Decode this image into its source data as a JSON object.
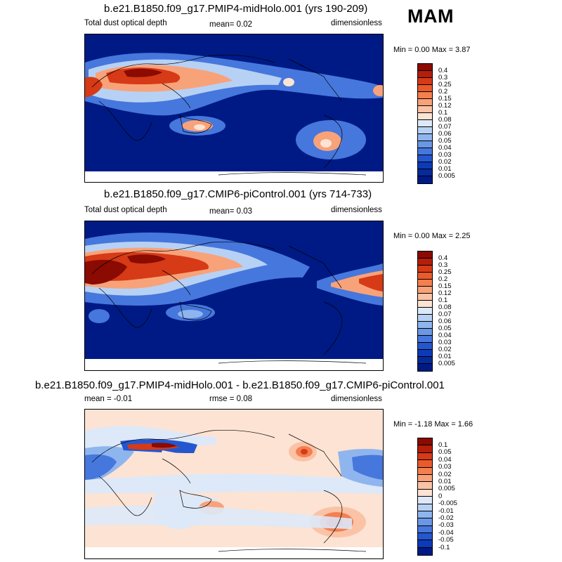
{
  "season": "MAM",
  "panels": [
    {
      "title": "b.e21.B1850.f09_g17.PMIP4-midHolo.001 (yrs 190-209)",
      "left_label": "Total dust optical depth",
      "stat": "mean=   0.02",
      "units": "dimensionless",
      "minmax": "Min =   0.00 Max =   3.87",
      "colorbar": {
        "labels": [
          "0.4",
          "0.3",
          "0.25",
          "0.2",
          "0.15",
          "0.12",
          "0.1",
          "0.08",
          "0.07",
          "0.06",
          "0.05",
          "0.04",
          "0.03",
          "0.02",
          "0.01",
          "0.005"
        ],
        "colors": [
          "#8b0a02",
          "#b51e0a",
          "#d63a16",
          "#ea5a2a",
          "#f47f4f",
          "#f8a27a",
          "#fbc3a6",
          "#fde3d3",
          "#dde9f8",
          "#b7d1f4",
          "#8fb5ee",
          "#6a97e6",
          "#4677dc",
          "#2457cf",
          "#0c3ab8",
          "#052a9a",
          "#001a85"
        ]
      }
    },
    {
      "title": "b.e21.B1850.f09_g17.CMIP6-piControl.001 (yrs 714-733)",
      "left_label": "Total dust optical depth",
      "stat": "mean=   0.03",
      "units": "dimensionless",
      "minmax": "Min =   0.00 Max =   2.25",
      "colorbar": {
        "labels": [
          "0.4",
          "0.3",
          "0.25",
          "0.2",
          "0.15",
          "0.12",
          "0.1",
          "0.08",
          "0.07",
          "0.06",
          "0.05",
          "0.04",
          "0.03",
          "0.02",
          "0.01",
          "0.005"
        ],
        "colors": [
          "#8b0a02",
          "#b51e0a",
          "#d63a16",
          "#ea5a2a",
          "#f47f4f",
          "#f8a27a",
          "#fbc3a6",
          "#fde3d3",
          "#dde9f8",
          "#b7d1f4",
          "#8fb5ee",
          "#6a97e6",
          "#4677dc",
          "#2457cf",
          "#0c3ab8",
          "#052a9a",
          "#001a85"
        ]
      }
    },
    {
      "title": "b.e21.B1850.f09_g17.PMIP4-midHolo.001 - b.e21.B1850.f09_g17.CMIP6-piControl.001",
      "left_label": "mean =  -0.01",
      "stat": "rmse =   0.08",
      "units": "dimensionless",
      "minmax": "Min =  -1.18 Max =   1.66",
      "colorbar": {
        "labels": [
          "0.1",
          "0.05",
          "0.04",
          "0.03",
          "0.02",
          "0.01",
          "0.005",
          "0",
          "-0.005",
          "-0.01",
          "-0.02",
          "-0.03",
          "-0.04",
          "-0.05",
          "-0.1"
        ],
        "colors": [
          "#8b0a02",
          "#b51e0a",
          "#d63a16",
          "#ea5a2a",
          "#f47f4f",
          "#f8a27a",
          "#fbc3a6",
          "#fde3d3",
          "#dde9f8",
          "#b7d1f4",
          "#8fb5ee",
          "#6a97e6",
          "#4677dc",
          "#2457cf",
          "#0c3ab8",
          "#001a85"
        ]
      }
    }
  ],
  "map_colors": {
    "ocean_low": "#001a85",
    "ocean_diff_pos": "#fde3d3",
    "ocean_diff_neg": "#dde9f8",
    "dust_med": "#4677dc",
    "dust_light": "#8fb5ee",
    "dust_pale": "#b7d1f4",
    "dust_warm": "#f8a27a",
    "dust_hot": "#d63a16",
    "dust_max": "#8b0a02",
    "coast": "#000000"
  }
}
